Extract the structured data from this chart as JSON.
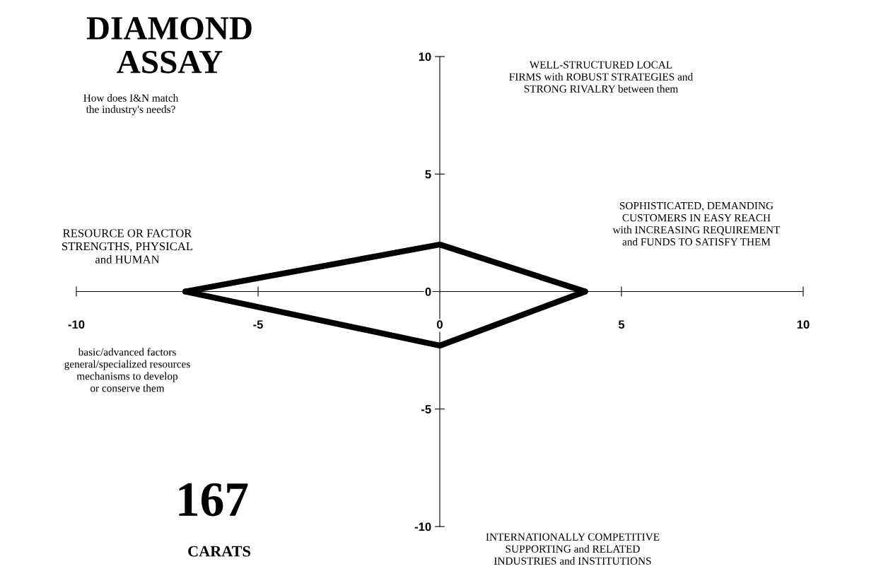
{
  "chart_data": {
    "type": "line",
    "title": "DIAMOND\nASSAY",
    "subtitle": "How does I&N match\nthe industry's needs?",
    "series": [
      {
        "color": "#000000",
        "x": [
          -7,
          0,
          4
        ],
        "values": [
          0,
          2,
          0
        ]
      },
      {
        "color": "#000000",
        "x": [
          -7,
          0,
          4
        ],
        "values": [
          0,
          -2.3,
          0
        ]
      }
    ],
    "xlim": [
      -10,
      10
    ],
    "ylim": [
      -10,
      10
    ],
    "xticks": [
      -10,
      -5,
      0,
      5,
      10
    ],
    "yticks": [
      -10,
      -5,
      0,
      5,
      10
    ],
    "marker": "none",
    "line_style": "solid",
    "grid": false,
    "legend": false,
    "annotations": [
      "WELL-STRUCTURED LOCAL\nFIRMS with ROBUST STRATEGIES and\nSTRONG RIVALRY between them",
      "SOPHISTICATED, DEMANDING\nCUSTOMERS IN EASY REACH\nwith INCREASING REQUIREMENT\nand FUNDS TO SATISFY THEM",
      "RESOURCE OR FACTOR\nSTRENGTHS, PHYSICAL\nand HUMAN",
      "basic/advanced factors\ngeneral/specialized resources\nmechanisms to develop\nor conserve them",
      "INTERNATIONALLY COMPETITIVE\nSUPPORTING and RELATED\nINDUSTRIES and INSTITUTIONS",
      "167",
      "CARATS"
    ]
  }
}
